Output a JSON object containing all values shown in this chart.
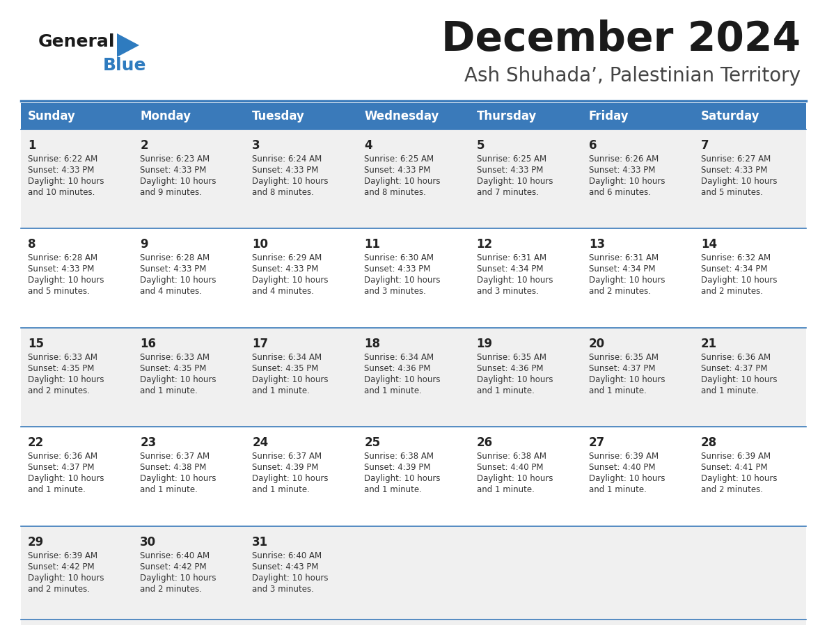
{
  "title": "December 2024",
  "subtitle": "Ash Shuhada’, Palestinian Territory",
  "days_of_week": [
    "Sunday",
    "Monday",
    "Tuesday",
    "Wednesday",
    "Thursday",
    "Friday",
    "Saturday"
  ],
  "header_bg": "#3a7aba",
  "header_text_color": "#FFFFFF",
  "row_bg_odd": "#f0f0f0",
  "row_bg_even": "#FFFFFF",
  "cell_text_color": "#333333",
  "day_num_color": "#222222",
  "border_color": "#3a7aba",
  "title_color": "#1a1a1a",
  "subtitle_color": "#444444",
  "logo_general_color": "#1a1a1a",
  "logo_blue_color": "#2E7BBF",
  "weeks": [
    [
      {
        "day": 1,
        "sunrise": "6:22 AM",
        "sunset": "4:33 PM",
        "daylight": "10 hours and 10 minutes"
      },
      {
        "day": 2,
        "sunrise": "6:23 AM",
        "sunset": "4:33 PM",
        "daylight": "10 hours and 9 minutes"
      },
      {
        "day": 3,
        "sunrise": "6:24 AM",
        "sunset": "4:33 PM",
        "daylight": "10 hours and 8 minutes"
      },
      {
        "day": 4,
        "sunrise": "6:25 AM",
        "sunset": "4:33 PM",
        "daylight": "10 hours and 8 minutes"
      },
      {
        "day": 5,
        "sunrise": "6:25 AM",
        "sunset": "4:33 PM",
        "daylight": "10 hours and 7 minutes"
      },
      {
        "day": 6,
        "sunrise": "6:26 AM",
        "sunset": "4:33 PM",
        "daylight": "10 hours and 6 minutes"
      },
      {
        "day": 7,
        "sunrise": "6:27 AM",
        "sunset": "4:33 PM",
        "daylight": "10 hours and 5 minutes"
      }
    ],
    [
      {
        "day": 8,
        "sunrise": "6:28 AM",
        "sunset": "4:33 PM",
        "daylight": "10 hours and 5 minutes"
      },
      {
        "day": 9,
        "sunrise": "6:28 AM",
        "sunset": "4:33 PM",
        "daylight": "10 hours and 4 minutes"
      },
      {
        "day": 10,
        "sunrise": "6:29 AM",
        "sunset": "4:33 PM",
        "daylight": "10 hours and 4 minutes"
      },
      {
        "day": 11,
        "sunrise": "6:30 AM",
        "sunset": "4:33 PM",
        "daylight": "10 hours and 3 minutes"
      },
      {
        "day": 12,
        "sunrise": "6:31 AM",
        "sunset": "4:34 PM",
        "daylight": "10 hours and 3 minutes"
      },
      {
        "day": 13,
        "sunrise": "6:31 AM",
        "sunset": "4:34 PM",
        "daylight": "10 hours and 2 minutes"
      },
      {
        "day": 14,
        "sunrise": "6:32 AM",
        "sunset": "4:34 PM",
        "daylight": "10 hours and 2 minutes"
      }
    ],
    [
      {
        "day": 15,
        "sunrise": "6:33 AM",
        "sunset": "4:35 PM",
        "daylight": "10 hours and 2 minutes"
      },
      {
        "day": 16,
        "sunrise": "6:33 AM",
        "sunset": "4:35 PM",
        "daylight": "10 hours and 1 minute"
      },
      {
        "day": 17,
        "sunrise": "6:34 AM",
        "sunset": "4:35 PM",
        "daylight": "10 hours and 1 minute"
      },
      {
        "day": 18,
        "sunrise": "6:34 AM",
        "sunset": "4:36 PM",
        "daylight": "10 hours and 1 minute"
      },
      {
        "day": 19,
        "sunrise": "6:35 AM",
        "sunset": "4:36 PM",
        "daylight": "10 hours and 1 minute"
      },
      {
        "day": 20,
        "sunrise": "6:35 AM",
        "sunset": "4:37 PM",
        "daylight": "10 hours and 1 minute"
      },
      {
        "day": 21,
        "sunrise": "6:36 AM",
        "sunset": "4:37 PM",
        "daylight": "10 hours and 1 minute"
      }
    ],
    [
      {
        "day": 22,
        "sunrise": "6:36 AM",
        "sunset": "4:37 PM",
        "daylight": "10 hours and 1 minute"
      },
      {
        "day": 23,
        "sunrise": "6:37 AM",
        "sunset": "4:38 PM",
        "daylight": "10 hours and 1 minute"
      },
      {
        "day": 24,
        "sunrise": "6:37 AM",
        "sunset": "4:39 PM",
        "daylight": "10 hours and 1 minute"
      },
      {
        "day": 25,
        "sunrise": "6:38 AM",
        "sunset": "4:39 PM",
        "daylight": "10 hours and 1 minute"
      },
      {
        "day": 26,
        "sunrise": "6:38 AM",
        "sunset": "4:40 PM",
        "daylight": "10 hours and 1 minute"
      },
      {
        "day": 27,
        "sunrise": "6:39 AM",
        "sunset": "4:40 PM",
        "daylight": "10 hours and 1 minute"
      },
      {
        "day": 28,
        "sunrise": "6:39 AM",
        "sunset": "4:41 PM",
        "daylight": "10 hours and 2 minutes"
      }
    ],
    [
      {
        "day": 29,
        "sunrise": "6:39 AM",
        "sunset": "4:42 PM",
        "daylight": "10 hours and 2 minutes"
      },
      {
        "day": 30,
        "sunrise": "6:40 AM",
        "sunset": "4:42 PM",
        "daylight": "10 hours and 2 minutes"
      },
      {
        "day": 31,
        "sunrise": "6:40 AM",
        "sunset": "4:43 PM",
        "daylight": "10 hours and 3 minutes"
      },
      null,
      null,
      null,
      null
    ]
  ]
}
